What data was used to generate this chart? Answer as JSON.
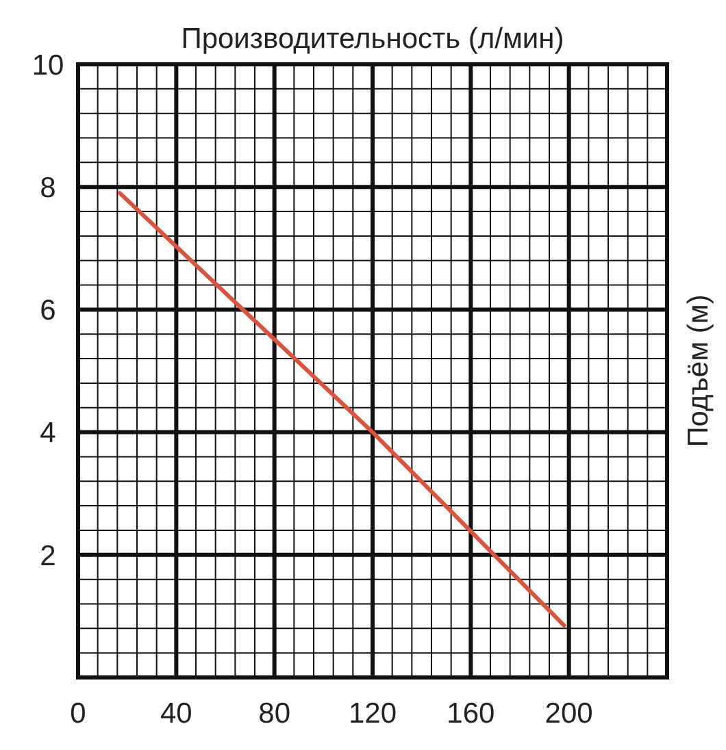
{
  "chart_data": {
    "type": "line",
    "xlabel": "Производительность (л/мин)",
    "ylabel": "Подъём (м)",
    "x": [
      17,
      120,
      198
    ],
    "series": [
      {
        "color": "#d9533f",
        "values": [
          7.9,
          4,
          0.85
        ]
      }
    ],
    "xlim": [
      0,
      240
    ],
    "ylim": [
      0,
      10
    ],
    "xticks": [
      0,
      {
        "value": 8,
        "label": null
      },
      {
        "value": 16,
        "label": null
      },
      {
        "value": 24,
        "label": null
      },
      {
        "value": 32,
        "label": null
      },
      40,
      {
        "value": 48,
        "label": null
      },
      {
        "value": 56,
        "label": null
      },
      {
        "value": 64,
        "label": null
      },
      {
        "value": 72,
        "label": null
      },
      80,
      {
        "value": 88,
        "label": null
      },
      {
        "value": 96,
        "label": null
      },
      {
        "value": 104,
        "label": null
      },
      {
        "value": 112,
        "label": null
      },
      120,
      {
        "value": 128,
        "label": null
      },
      {
        "value": 136,
        "label": null
      },
      {
        "value": 144,
        "label": null
      },
      {
        "value": 152,
        "label": null
      },
      160,
      {
        "value": 168,
        "label": null
      },
      {
        "value": 176,
        "label": null
      },
      {
        "value": 184,
        "label": null
      },
      {
        "value": 192,
        "label": null
      },
      200,
      {
        "value": 208,
        "label": null
      },
      {
        "value": 216,
        "label": null
      },
      {
        "value": 224,
        "label": null
      },
      {
        "value": 232,
        "label": null
      },
      {
        "value": 240,
        "label": null
      }
    ],
    "yticks": [
      {
        "value": 0.4,
        "label": null
      },
      {
        "value": 0.8,
        "label": null
      },
      {
        "value": 1.2,
        "label": null
      },
      {
        "value": 1.6,
        "label": null
      },
      2,
      {
        "value": 2.4,
        "label": null
      },
      {
        "value": 2.8,
        "label": null
      },
      {
        "value": 3.2,
        "label": null
      },
      {
        "value": 3.6,
        "label": null
      },
      4,
      {
        "value": 4.4,
        "label": null
      },
      {
        "value": 4.8,
        "label": null
      },
      {
        "value": 5.2,
        "label": null
      },
      {
        "value": 5.6,
        "label": null
      },
      6,
      {
        "value": 6.4,
        "label": null
      },
      {
        "value": 6.8,
        "label": null
      },
      {
        "value": 7.2,
        "label": null
      },
      {
        "value": 7.6,
        "label": null
      },
      8,
      {
        "value": 8.4,
        "label": null
      },
      {
        "value": 8.8,
        "label": null
      },
      {
        "value": 9.2,
        "label": null
      },
      {
        "value": 9.6,
        "label": null
      },
      10
    ],
    "grid": true,
    "marker": "none",
    "line_style": "solid"
  }
}
